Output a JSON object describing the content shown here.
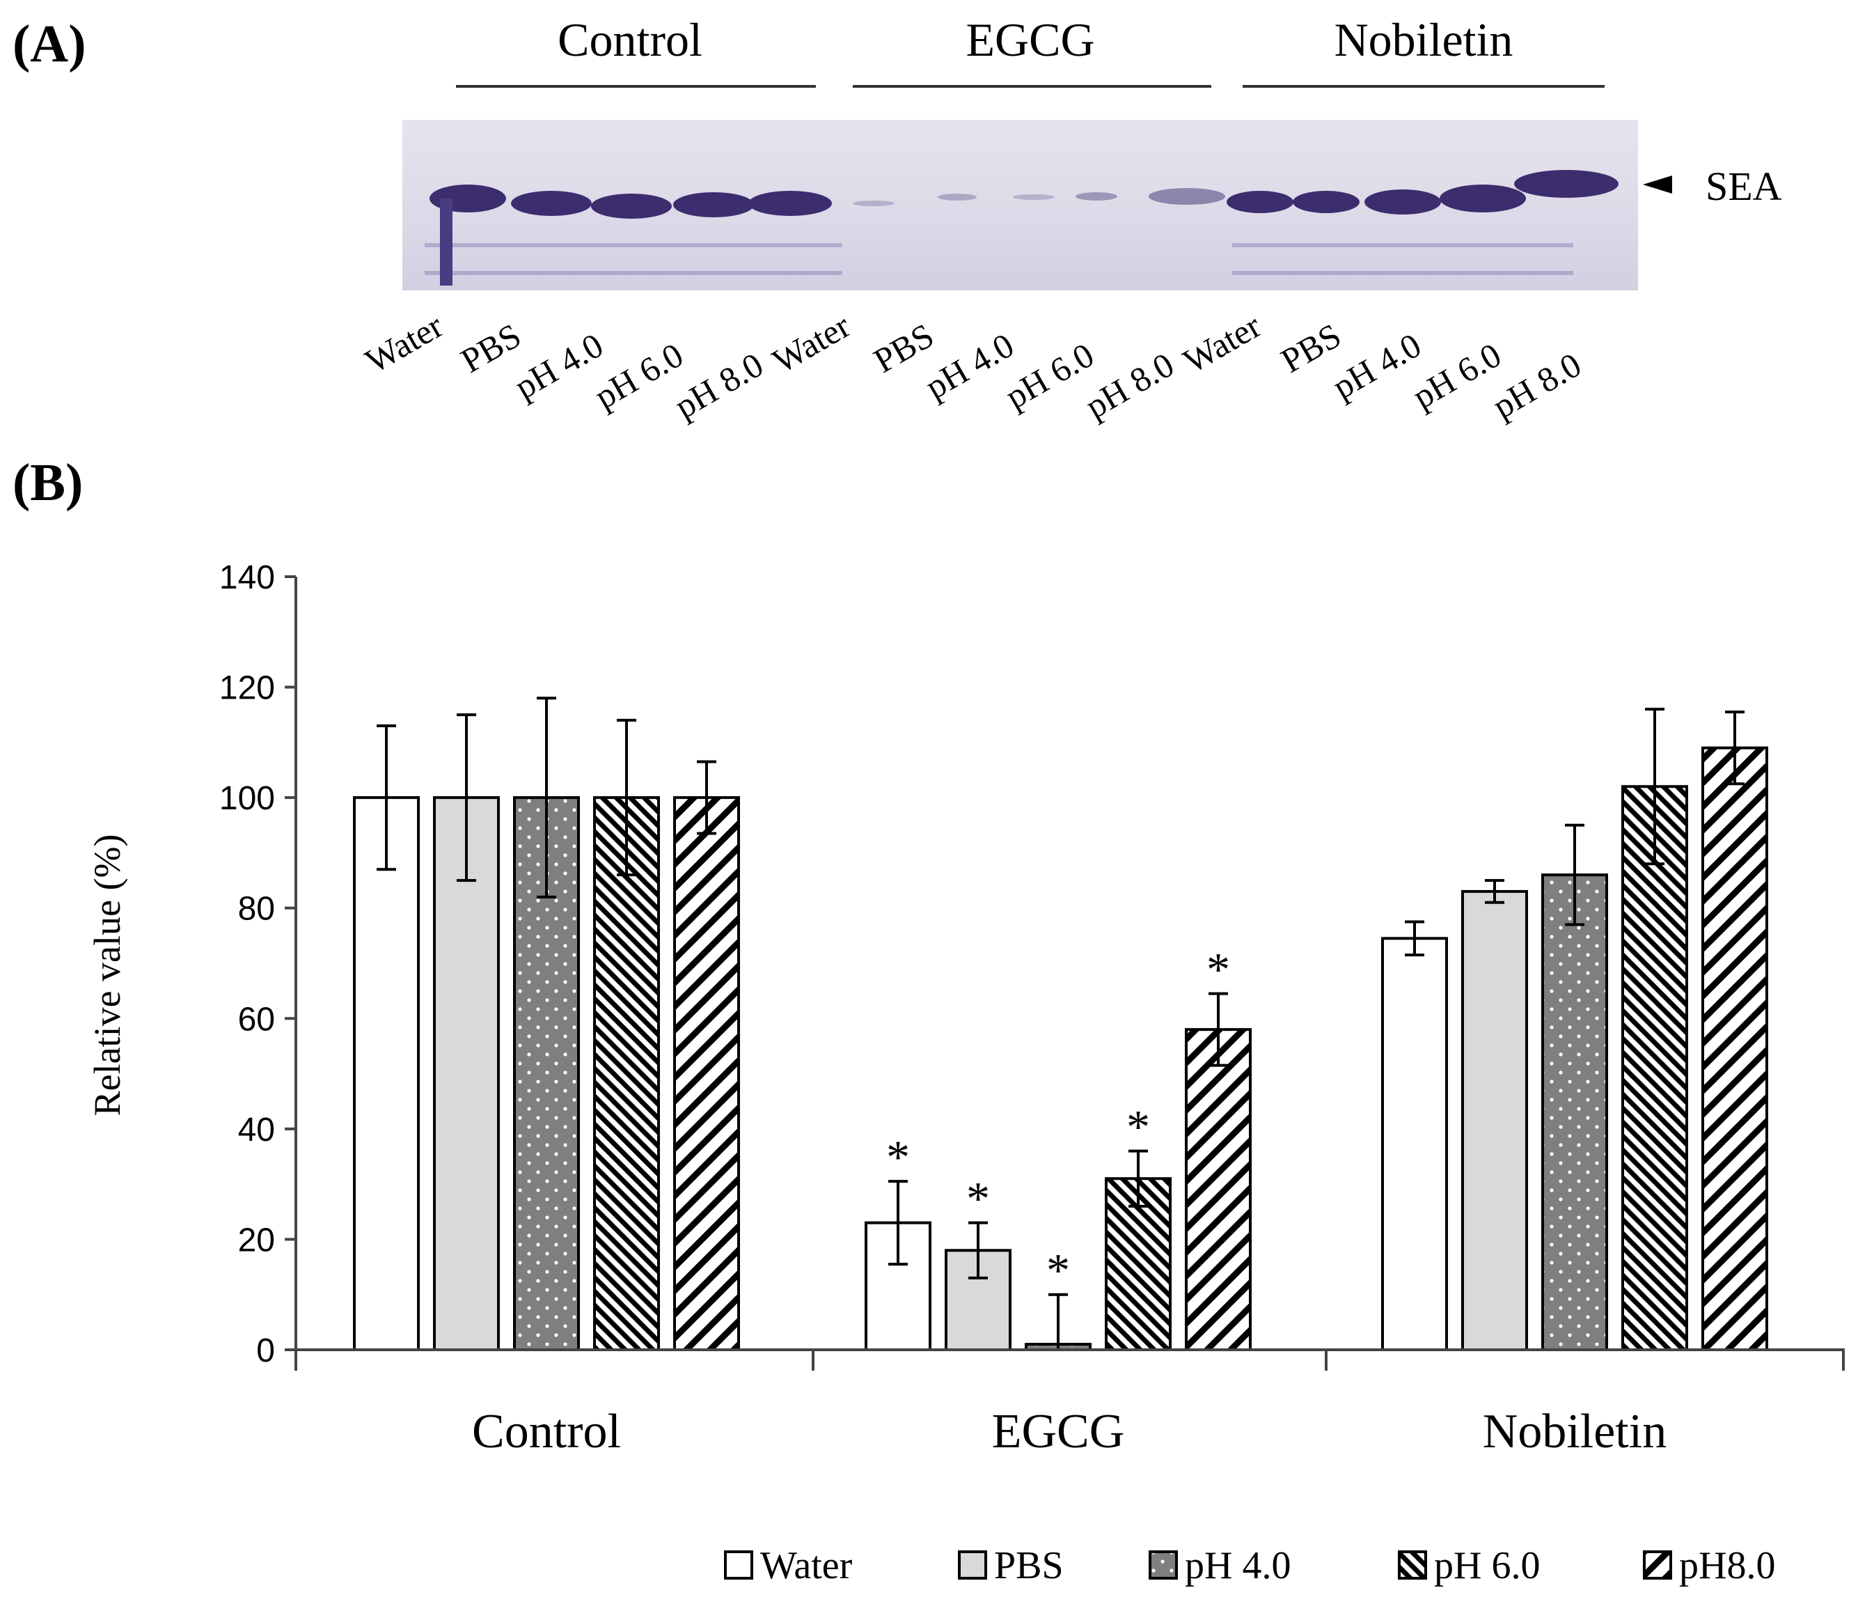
{
  "panel_a": {
    "label": "(A)",
    "headers": [
      "Control",
      "EGCG",
      "Nobiletin"
    ],
    "band_label": "SEA",
    "lanes": [
      "Water",
      "PBS",
      "pH 4.0",
      "pH 6.0",
      "pH 8.0",
      "Water",
      "PBS",
      "pH 4.0",
      "pH 6.0",
      "pH 8.0",
      "Water",
      "PBS",
      "pH 4.0",
      "pH 6.0",
      "pH 8.0"
    ]
  },
  "panel_b": {
    "label": "(B)"
  },
  "colors": {
    "water": "#ffffff",
    "pbs": "#d9d9d9",
    "ph4": "#7f7f7f",
    "axis": "#444444",
    "gel_bg": "#d9d6e6",
    "band": "#3b2d6e"
  },
  "chart_data": {
    "type": "bar",
    "ylabel": "Relative value (%)",
    "xlabel": "",
    "ylim": [
      0,
      140
    ],
    "yticks": [
      "0",
      "20",
      "40",
      "60",
      "80",
      "100",
      "120",
      "140"
    ],
    "categories": [
      "Control",
      "EGCG",
      "Nobiletin"
    ],
    "significance_marker": "*",
    "legend_position": "bottom-right",
    "series": [
      {
        "name": "Water",
        "pattern": "none",
        "values": [
          100,
          23,
          74.5
        ],
        "errors": [
          13,
          7.5,
          3
        ],
        "significant": [
          false,
          true,
          false
        ]
      },
      {
        "name": "PBS",
        "pattern": "light",
        "values": [
          100,
          18,
          83
        ],
        "errors": [
          15,
          5,
          2
        ],
        "significant": [
          false,
          true,
          false
        ]
      },
      {
        "name": "pH 4.0",
        "pattern": "dots",
        "values": [
          100,
          1,
          86
        ],
        "errors": [
          18,
          9,
          9
        ],
        "significant": [
          false,
          true,
          false
        ]
      },
      {
        "name": "pH 6.0",
        "pattern": "dense-diagonal",
        "values": [
          100,
          31,
          102
        ],
        "errors": [
          14,
          5,
          14
        ],
        "significant": [
          false,
          true,
          false
        ]
      },
      {
        "name": "pH8.0",
        "pattern": "wide-diagonal",
        "values": [
          100,
          58,
          109
        ],
        "errors": [
          6.5,
          6.5,
          6.5
        ],
        "significant": [
          false,
          true,
          false
        ]
      }
    ]
  }
}
